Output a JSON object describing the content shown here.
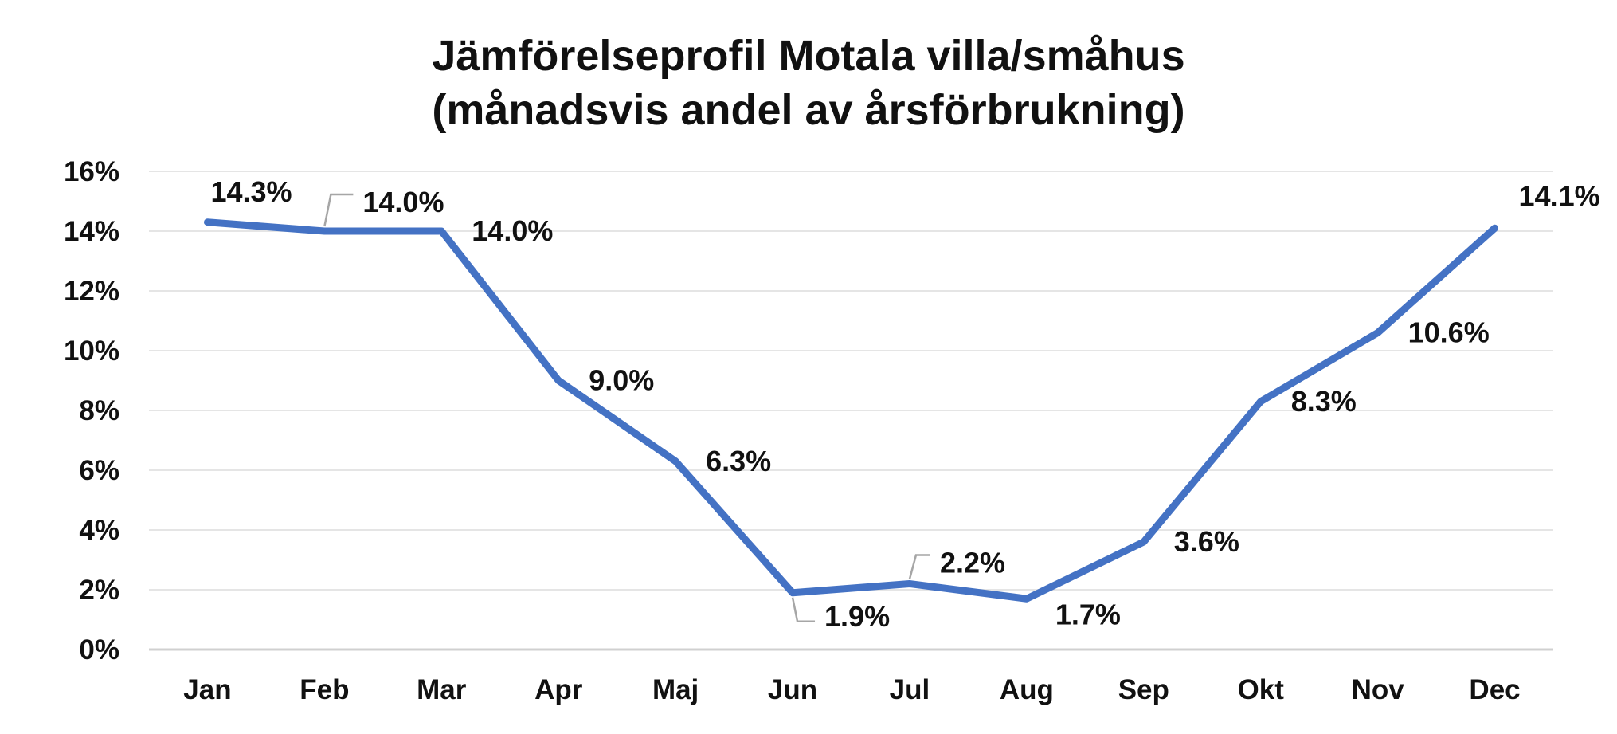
{
  "chart_data": {
    "type": "line",
    "title_lines": [
      "Jämförelseprofil Motala villa/småhus",
      "(månadsvis andel av årsförbrukning)"
    ],
    "categories": [
      "Jan",
      "Feb",
      "Mar",
      "Apr",
      "Maj",
      "Jun",
      "Jul",
      "Aug",
      "Sep",
      "Okt",
      "Nov",
      "Dec"
    ],
    "series": [
      {
        "values": [
          14.3,
          14.0,
          14.0,
          9.0,
          6.3,
          1.9,
          2.2,
          1.7,
          3.6,
          8.3,
          10.6,
          14.1
        ],
        "color": "#4472C4"
      }
    ],
    "data_labels": [
      "14.3%",
      "14.0%",
      "14.0%",
      "9.0%",
      "6.3%",
      "1.9%",
      "2.2%",
      "1.7%",
      "3.6%",
      "8.3%",
      "10.6%",
      "14.1%"
    ],
    "y_ticks": [
      "0%",
      "2%",
      "4%",
      "6%",
      "8%",
      "10%",
      "12%",
      "14%",
      "16%"
    ],
    "ylim": [
      0,
      16
    ],
    "xlabel": "",
    "ylabel": "",
    "grid": true,
    "legend": "none",
    "colors": {
      "line": "#4472C4",
      "grid": "#E5E5E5",
      "axis": "#D0D0D0",
      "leader": "#A6A6A6"
    }
  }
}
